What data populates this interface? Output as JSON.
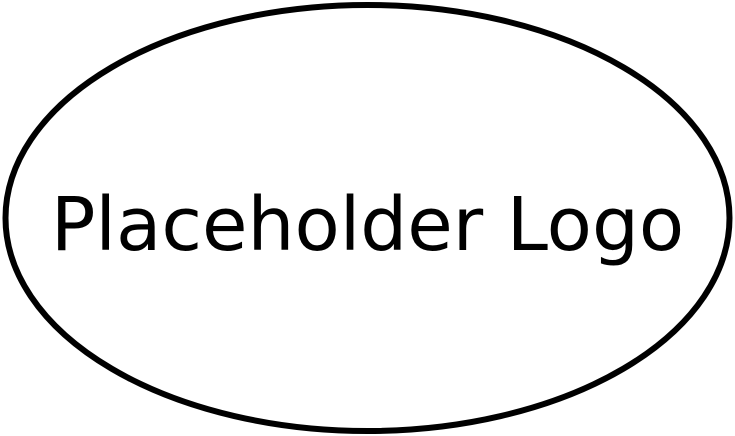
{
  "logo": {
    "text": "Placeholder Logo",
    "stroke_color": "#000000",
    "fill_color": "#ffffff",
    "text_color": "#000000",
    "shape": "ellipse"
  }
}
